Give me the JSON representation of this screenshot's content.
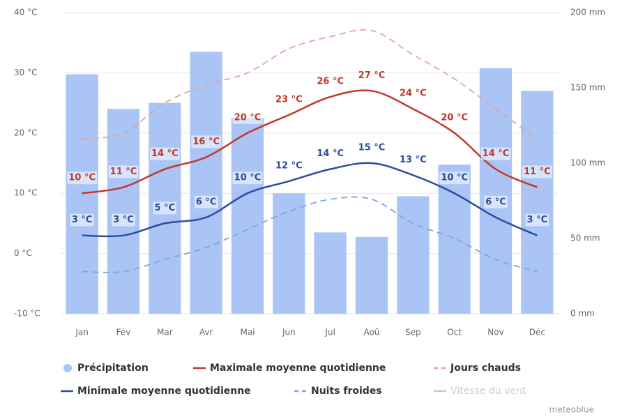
{
  "chart_data": {
    "type": "bar",
    "categories": [
      "Jan",
      "Fév",
      "Mar",
      "Avr",
      "Mai",
      "Jun",
      "Jul",
      "Aoû",
      "Sep",
      "Oct",
      "Nov",
      "Déc"
    ],
    "series": [
      {
        "name": "Précipitation",
        "type": "bar",
        "axis": "y2",
        "color": "#a9c4f5",
        "values": [
          159,
          136,
          140,
          174,
          130,
          80,
          54,
          51,
          78,
          99,
          163,
          148
        ]
      },
      {
        "name": "Maximale moyenne quotidienne",
        "type": "line",
        "color": "#c0392b",
        "values": [
          10,
          11,
          14,
          16,
          20,
          23,
          26,
          27,
          24,
          20,
          14,
          11
        ],
        "value_labels": [
          "10 °C",
          "11 °C",
          "14 °C",
          "16 °C",
          "20 °C",
          "23 °C",
          "26 °C",
          "27 °C",
          "24 °C",
          "20 °C",
          "14 °C",
          "11 °C"
        ]
      },
      {
        "name": "Jours chauds",
        "type": "line",
        "dashed": true,
        "color": "#e3a597",
        "values": [
          19,
          20,
          25,
          28,
          30,
          34,
          36,
          37,
          33,
          29,
          24,
          19
        ]
      },
      {
        "name": "Minimale moyenne quotidienne",
        "type": "line",
        "color": "#2f4c9c",
        "values": [
          3,
          3,
          5,
          6,
          10,
          12,
          14,
          15,
          13,
          10,
          6,
          3
        ],
        "value_labels": [
          "3 °C",
          "3 °C",
          "5 °C",
          "6 °C",
          "10 °C",
          "12 °C",
          "14 °C",
          "15 °C",
          "13 °C",
          "10 °C",
          "6 °C",
          "3 °C"
        ]
      },
      {
        "name": "Nuits froides",
        "type": "line",
        "dashed": true,
        "color": "#7ea6dc",
        "values": [
          -3,
          -3,
          -1,
          1,
          4,
          7,
          9,
          9,
          5,
          2.5,
          -1,
          -3
        ]
      }
    ],
    "legend_disabled": [
      "Vitesse du vent"
    ],
    "credit": "meteoblue",
    "ylim": [
      -10,
      40
    ],
    "yticks": [
      {
        "value": -10,
        "label": "-10 °C"
      },
      {
        "value": 0,
        "label": "0 °C"
      },
      {
        "value": 10,
        "label": "10 °C"
      },
      {
        "value": 20,
        "label": "20 °C"
      },
      {
        "value": 30,
        "label": "30 °C"
      },
      {
        "value": 40,
        "label": "40 °C"
      }
    ],
    "y2lim": [
      0,
      200
    ],
    "y2ticks": [
      {
        "value": 0,
        "label": "0 mm"
      },
      {
        "value": 50,
        "label": "50 mm"
      },
      {
        "value": 100,
        "label": "100 mm"
      },
      {
        "value": 150,
        "label": "150 mm"
      },
      {
        "value": 200,
        "label": "200 mm"
      }
    ],
    "grid": true
  }
}
